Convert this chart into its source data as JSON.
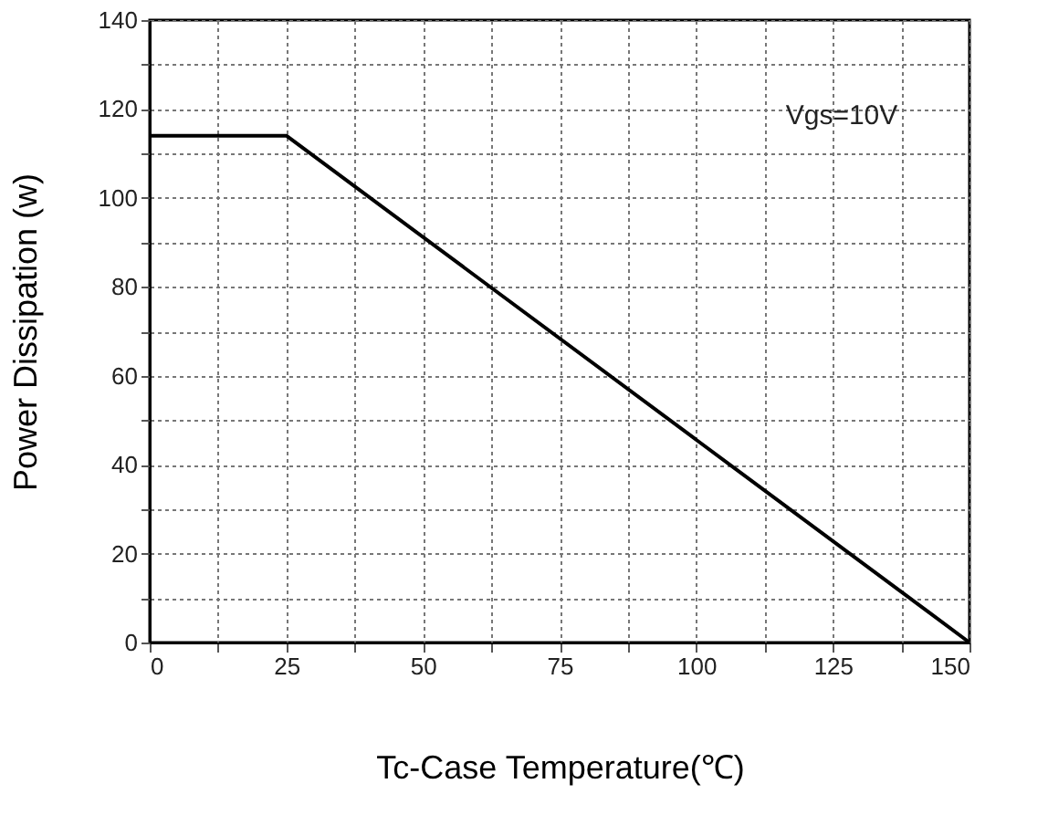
{
  "chart_data": {
    "type": "line",
    "xlabel": "Tc-Case Temperature(℃)",
    "ylabel": "Power Dissipation (w)",
    "annotations": [
      "Vgs=10V"
    ],
    "x": [
      0,
      25,
      150
    ],
    "series": [
      {
        "color": "#000000",
        "values": [
          114,
          114,
          0
        ]
      }
    ],
    "xlim": [
      0,
      150
    ],
    "xticks": [
      0,
      {
        "value": 12.5,
        "label": null
      },
      25,
      {
        "value": 37.5,
        "label": null
      },
      50,
      {
        "value": 62.5,
        "label": null
      },
      75,
      {
        "value": 87.5,
        "label": null
      },
      100,
      {
        "value": 112.5,
        "label": null
      },
      125,
      {
        "value": 137.5,
        "label": null
      },
      150
    ],
    "ylim": [
      0,
      140
    ],
    "yticks": [
      0,
      {
        "value": 10,
        "label": null
      },
      20,
      {
        "value": 30,
        "label": null
      },
      40,
      {
        "value": 50,
        "label": null
      },
      60,
      {
        "value": 70,
        "label": null
      },
      80,
      {
        "value": 90,
        "label": null
      },
      100,
      {
        "value": 110,
        "label": null
      },
      120,
      {
        "value": 130,
        "label": null
      },
      140
    ],
    "grid": true,
    "marker": "none",
    "line_style": "solid"
  }
}
